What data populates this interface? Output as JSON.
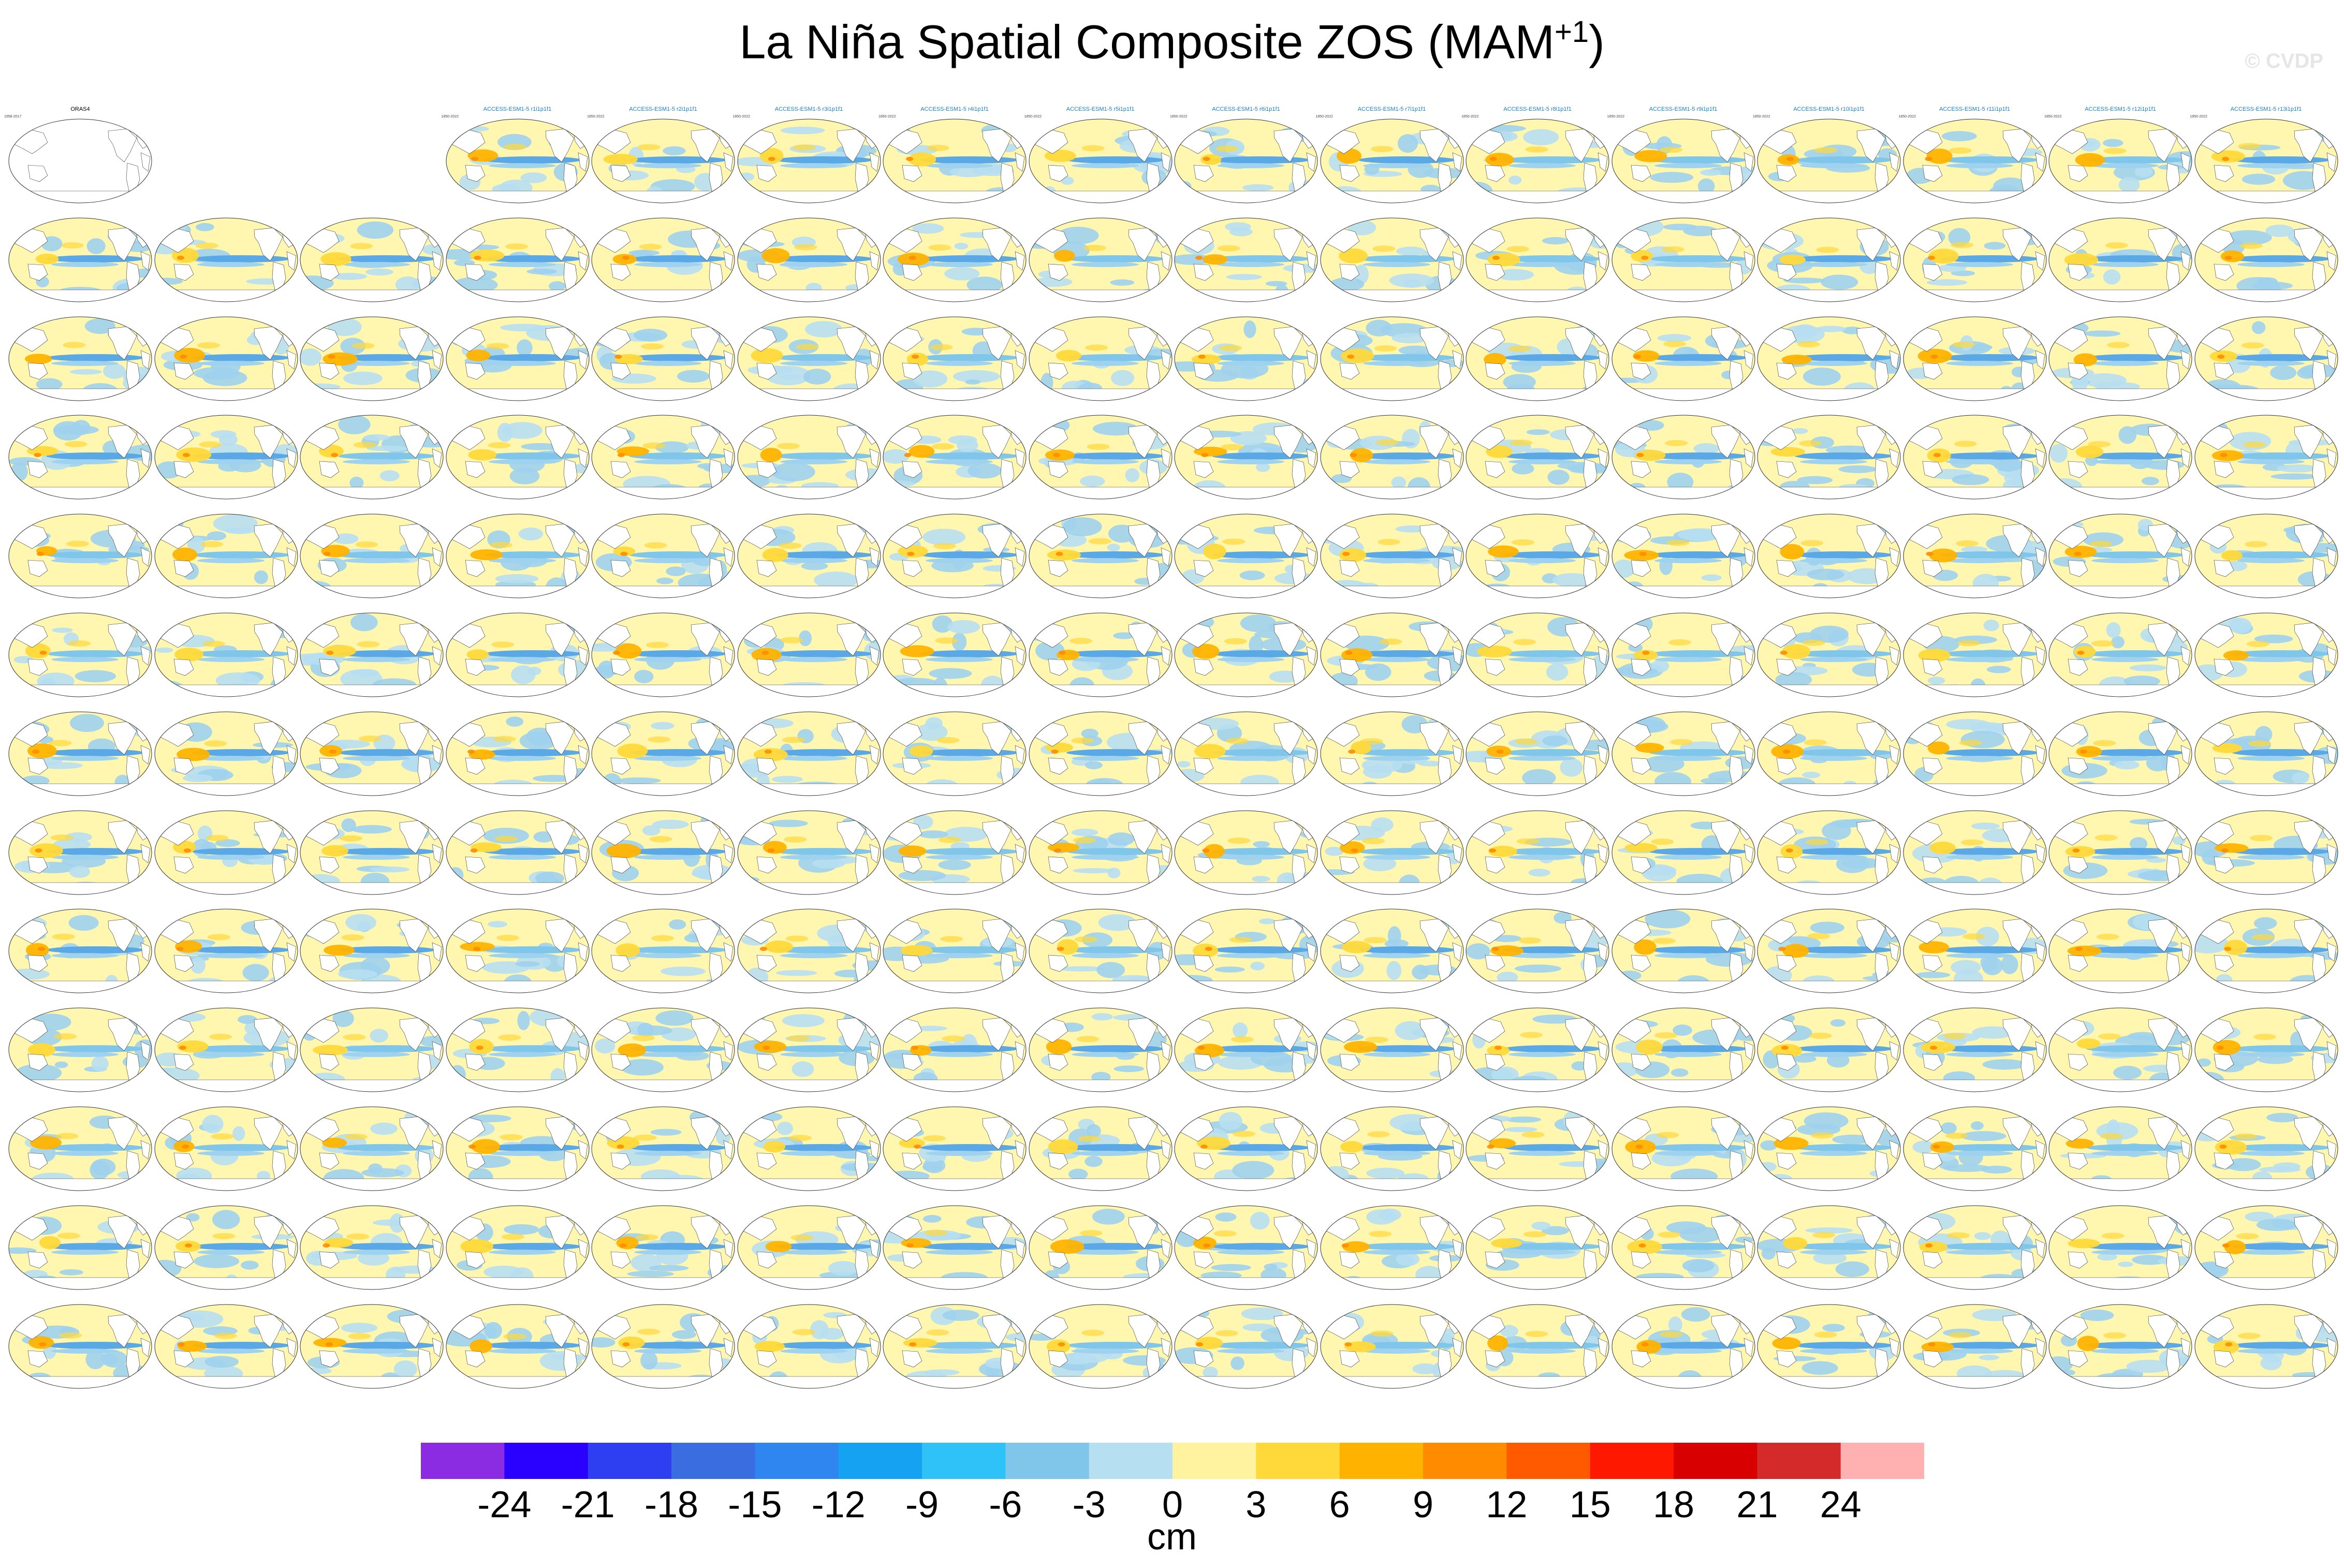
{
  "title": {
    "main": "La Niña Spatial Composite ZOS (MAM",
    "superscript": "+1",
    "close": ")"
  },
  "watermark": "© CVDP",
  "panels": [
    {
      "title": "ORAS4",
      "years": "1958-2017",
      "stat": "",
      "type": "observation"
    },
    {
      "title": "ACCESS-ESM1-5 r1i1p1f1",
      "years": "1850-2022",
      "stat": "",
      "type": "model"
    },
    {
      "title": "ACCESS-ESM1-5 r2i1p1f1",
      "years": "1850-2022",
      "stat": "",
      "type": "model"
    },
    {
      "title": "ACCESS-ESM1-5 r3i1p1f1",
      "years": "1850-2022",
      "stat": "",
      "type": "model"
    },
    {
      "title": "ACCESS-ESM1-5 r4i1p1f1",
      "years": "1850-2022",
      "stat": "",
      "type": "model"
    },
    {
      "title": "ACCESS-ESM1-5 r5i1p1f1",
      "years": "1850-2022",
      "stat": "",
      "type": "model"
    },
    {
      "title": "ACCESS-ESM1-5 r6i1p1f1",
      "years": "1850-2022",
      "stat": "",
      "type": "model"
    },
    {
      "title": "ACCESS-ESM1-5 r7i1p1f1",
      "years": "1850-2022",
      "stat": "",
      "type": "model"
    },
    {
      "title": "ACCESS-ESM1-5 r8i1p1f1",
      "years": "1850-2022",
      "stat": "",
      "type": "model"
    },
    {
      "title": "ACCESS-ESM1-5 r9i1p1f1",
      "years": "1850-2022",
      "stat": "",
      "type": "model"
    },
    {
      "title": "ACCESS-ESM1-5 r10i1p1f1",
      "years": "1850-2022",
      "stat": "",
      "type": "model"
    },
    {
      "title": "ACCESS-ESM1-5 r11i1p1f1",
      "years": "1850-2022",
      "stat": "",
      "type": "model"
    },
    {
      "title": "ACCESS-ESM1-5 r12i1p1f1",
      "years": "1850-2022",
      "stat": "",
      "type": "model"
    },
    {
      "title": "ACCESS-ESM1-5 r13i1p1f1",
      "years": "1850-2022",
      "stat": "",
      "type": "model"
    }
  ],
  "chart_data": {
    "type": "heatmap",
    "title": "La Niña Spatial Composite ZOS (MAM+1)",
    "variable": "ZOS",
    "season": "MAM+1",
    "layout": {
      "columns": 16,
      "rows": 13,
      "map_count": 207,
      "blank_slots": 1
    },
    "colorbar": {
      "units": "cm",
      "tick_labels": [
        "-24",
        "-21",
        "-18",
        "-15",
        "-12",
        "-9",
        "-6",
        "-3",
        "0",
        "3",
        "6",
        "9",
        "12",
        "15",
        "18",
        "21",
        "24"
      ],
      "levels": [
        -24,
        -21,
        -18,
        -15,
        -12,
        -9,
        -6,
        -3,
        0,
        3,
        6,
        9,
        12,
        15,
        18,
        21,
        24
      ],
      "colors": [
        "#8b2be2",
        "#2a00ff",
        "#2d3ff0",
        "#3a6ee0",
        "#2f86f0",
        "#16a2f2",
        "#2ec2f8",
        "#7fc6ea",
        "#b7dff2",
        "#fff3a0",
        "#ffd93a",
        "#ffb300",
        "#ff8c00",
        "#ff5a00",
        "#ff1800",
        "#d80000",
        "#d42a2a",
        "#ffb0b0"
      ]
    }
  }
}
